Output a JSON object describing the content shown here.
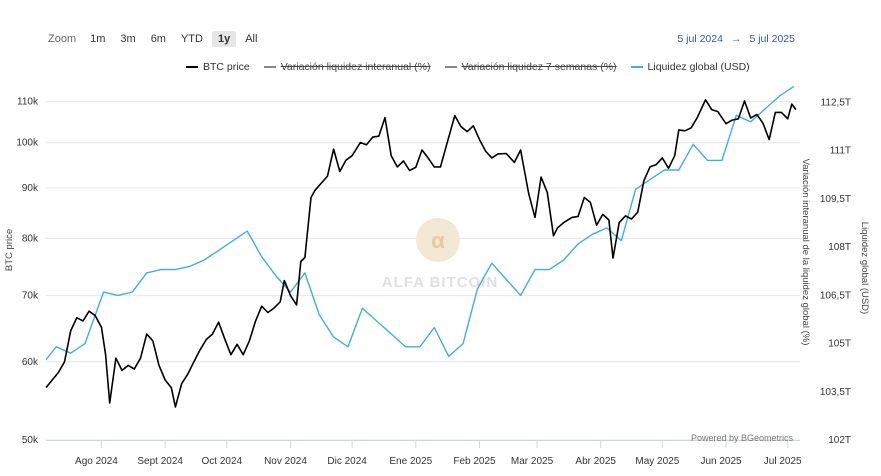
{
  "toolbar": {
    "zoom_label": "Zoom",
    "buttons": [
      "1m",
      "3m",
      "6m",
      "YTD",
      "1y",
      "All"
    ],
    "active": "1y"
  },
  "date_range": {
    "from": "5 jul 2024",
    "arrow": "→",
    "to": "5 jul 2025"
  },
  "legend": [
    {
      "name": "BTC price",
      "color": "#000000",
      "hidden": false
    },
    {
      "name": "Variación liquidez interanual (%)",
      "color": "#888888",
      "hidden": true
    },
    {
      "name": "Variación liquidez 7 semanas (%)",
      "color": "#888888",
      "hidden": true
    },
    {
      "name": "Liquidez global (USD)",
      "color": "#3daee9",
      "hidden": false
    }
  ],
  "watermark": "ALFA BITCOIN",
  "credit": "Powered by BGeometrics",
  "chart_data": {
    "type": "line",
    "x_labels": [
      "Ago 2024",
      "Sept 2024",
      "Oct 2024",
      "Nov 2024",
      "Dic 2024",
      "Ene 2025",
      "Feb 2025",
      "Mar 2025",
      "Abr 2025",
      "May 2025",
      "Jun 2025",
      "Jul 2025"
    ],
    "y_left": {
      "title": "BTC price",
      "scale": "log",
      "range": [
        50000,
        112000
      ],
      "ticks": [
        "50k",
        "60k",
        "70k",
        "80k",
        "90k",
        "100k",
        "110k"
      ],
      "tick_values": [
        50000,
        60000,
        70000,
        80000,
        90000,
        100000,
        110000
      ]
    },
    "y_right_1": {
      "title": "Variación interanual de la liquidez global (%)"
    },
    "y_right_2": {
      "title": "Liquidez global (USD)",
      "range": [
        102,
        113.2
      ],
      "ticks": [
        "102T",
        "103,5T",
        "105T",
        "106,5T",
        "108T",
        "109,5T",
        "111T",
        "112,5T"
      ],
      "tick_values": [
        102,
        103.5,
        105,
        106.5,
        108,
        109.5,
        111,
        112.5
      ]
    },
    "series": [
      {
        "name": "BTC price",
        "color": "#000000",
        "x": [
          "2024-07-05",
          "2024-07-08",
          "2024-07-11",
          "2024-07-14",
          "2024-07-17",
          "2024-07-20",
          "2024-07-23",
          "2024-07-26",
          "2024-07-29",
          "2024-08-01",
          "2024-08-03",
          "2024-08-05",
          "2024-08-08",
          "2024-08-11",
          "2024-08-14",
          "2024-08-17",
          "2024-08-20",
          "2024-08-23",
          "2024-08-26",
          "2024-08-29",
          "2024-09-01",
          "2024-09-04",
          "2024-09-06",
          "2024-09-09",
          "2024-09-12",
          "2024-09-15",
          "2024-09-18",
          "2024-09-21",
          "2024-09-24",
          "2024-09-27",
          "2024-09-30",
          "2024-10-03",
          "2024-10-06",
          "2024-10-09",
          "2024-10-12",
          "2024-10-15",
          "2024-10-18",
          "2024-10-21",
          "2024-10-24",
          "2024-10-27",
          "2024-10-29",
          "2024-11-01",
          "2024-11-04",
          "2024-11-06",
          "2024-11-08",
          "2024-11-11",
          "2024-11-13",
          "2024-11-16",
          "2024-11-19",
          "2024-11-22",
          "2024-11-25",
          "2024-11-28",
          "2024-12-01",
          "2024-12-05",
          "2024-12-08",
          "2024-12-11",
          "2024-12-14",
          "2024-12-17",
          "2024-12-20",
          "2024-12-23",
          "2024-12-26",
          "2024-12-29",
          "2025-01-01",
          "2025-01-04",
          "2025-01-07",
          "2025-01-10",
          "2025-01-13",
          "2025-01-16",
          "2025-01-20",
          "2025-01-23",
          "2025-01-26",
          "2025-01-29",
          "2025-02-01",
          "2025-02-04",
          "2025-02-07",
          "2025-02-10",
          "2025-02-14",
          "2025-02-18",
          "2025-02-21",
          "2025-02-25",
          "2025-02-28",
          "2025-03-03",
          "2025-03-06",
          "2025-03-09",
          "2025-03-11",
          "2025-03-14",
          "2025-03-18",
          "2025-03-21",
          "2025-03-24",
          "2025-03-27",
          "2025-03-30",
          "2025-04-02",
          "2025-04-05",
          "2025-04-07",
          "2025-04-10",
          "2025-04-13",
          "2025-04-16",
          "2025-04-19",
          "2025-04-22",
          "2025-04-25",
          "2025-04-28",
          "2025-05-01",
          "2025-05-04",
          "2025-05-07",
          "2025-05-09",
          "2025-05-12",
          "2025-05-15",
          "2025-05-18",
          "2025-05-22",
          "2025-05-25",
          "2025-05-28",
          "2025-06-01",
          "2025-06-04",
          "2025-06-07",
          "2025-06-10",
          "2025-06-13",
          "2025-06-16",
          "2025-06-19",
          "2025-06-22",
          "2025-06-25",
          "2025-06-28",
          "2025-07-01",
          "2025-07-03",
          "2025-07-05"
        ],
        "values": [
          56500,
          57500,
          58500,
          60000,
          64500,
          66500,
          66000,
          67500,
          66800,
          65000,
          61000,
          54500,
          60500,
          58800,
          59500,
          59000,
          60500,
          64000,
          63000,
          59500,
          57500,
          56500,
          54000,
          57000,
          58300,
          60000,
          61700,
          63200,
          64000,
          65800,
          63300,
          61000,
          62500,
          61000,
          63000,
          66000,
          68300,
          67300,
          68000,
          69000,
          72500,
          70000,
          68500,
          75800,
          76500,
          88000,
          89500,
          91000,
          92500,
          98500,
          93500,
          96000,
          97000,
          100000,
          99500,
          101300,
          101500,
          106000,
          97000,
          94500,
          95800,
          93700,
          94400,
          98300,
          96500,
          94500,
          94500,
          99500,
          106500,
          103800,
          102600,
          104000,
          100700,
          98000,
          96500,
          97400,
          97500,
          95500,
          98300,
          88700,
          84000,
          92300,
          89000,
          80500,
          82000,
          83000,
          84000,
          84200,
          88000,
          87000,
          82500,
          84600,
          83500,
          76400,
          83000,
          84300,
          83700,
          85000,
          91500,
          94500,
          95000,
          96500,
          94200,
          97000,
          103000,
          102800,
          103500,
          106000,
          110500,
          108000,
          107500,
          104500,
          105400,
          105700,
          110200,
          105900,
          106800,
          104600,
          100700,
          107300,
          107300,
          105700,
          109400,
          108000
        ]
      },
      {
        "name": "Liquidez global (USD)",
        "color": "#3daee9",
        "x": [
          "2024-07-05",
          "2024-07-10",
          "2024-07-17",
          "2024-07-24",
          "2024-08-02",
          "2024-08-09",
          "2024-08-16",
          "2024-08-23",
          "2024-08-30",
          "2024-09-06",
          "2024-09-13",
          "2024-09-20",
          "2024-09-27",
          "2024-10-04",
          "2024-10-11",
          "2024-10-18",
          "2024-10-25",
          "2024-11-01",
          "2024-11-08",
          "2024-11-15",
          "2024-11-22",
          "2024-11-29",
          "2024-12-06",
          "2024-12-13",
          "2024-12-20",
          "2024-12-27",
          "2025-01-03",
          "2025-01-10",
          "2025-01-17",
          "2025-01-24",
          "2025-01-31",
          "2025-02-07",
          "2025-02-14",
          "2025-02-21",
          "2025-02-28",
          "2025-03-07",
          "2025-03-14",
          "2025-03-21",
          "2025-03-28",
          "2025-04-04",
          "2025-04-11",
          "2025-04-18",
          "2025-04-25",
          "2025-05-02",
          "2025-05-09",
          "2025-05-16",
          "2025-05-23",
          "2025-05-30",
          "2025-06-06",
          "2025-06-13",
          "2025-06-20",
          "2025-06-27",
          "2025-07-04"
        ],
        "values": [
          104.5,
          104.9,
          104.7,
          105.0,
          106.6,
          106.5,
          106.6,
          107.2,
          107.3,
          107.3,
          107.4,
          107.6,
          107.9,
          108.2,
          108.5,
          107.7,
          107.1,
          106.6,
          107.2,
          105.9,
          105.2,
          104.9,
          106.1,
          105.7,
          105.3,
          104.9,
          104.9,
          105.5,
          104.6,
          105.0,
          106.7,
          107.5,
          107.0,
          106.5,
          107.3,
          107.3,
          107.6,
          108.1,
          108.4,
          108.6,
          108.2,
          109.8,
          110.1,
          110.4,
          110.4,
          111.2,
          110.7,
          110.7,
          112.1,
          111.9,
          112.3,
          112.7,
          113.0
        ]
      }
    ]
  }
}
